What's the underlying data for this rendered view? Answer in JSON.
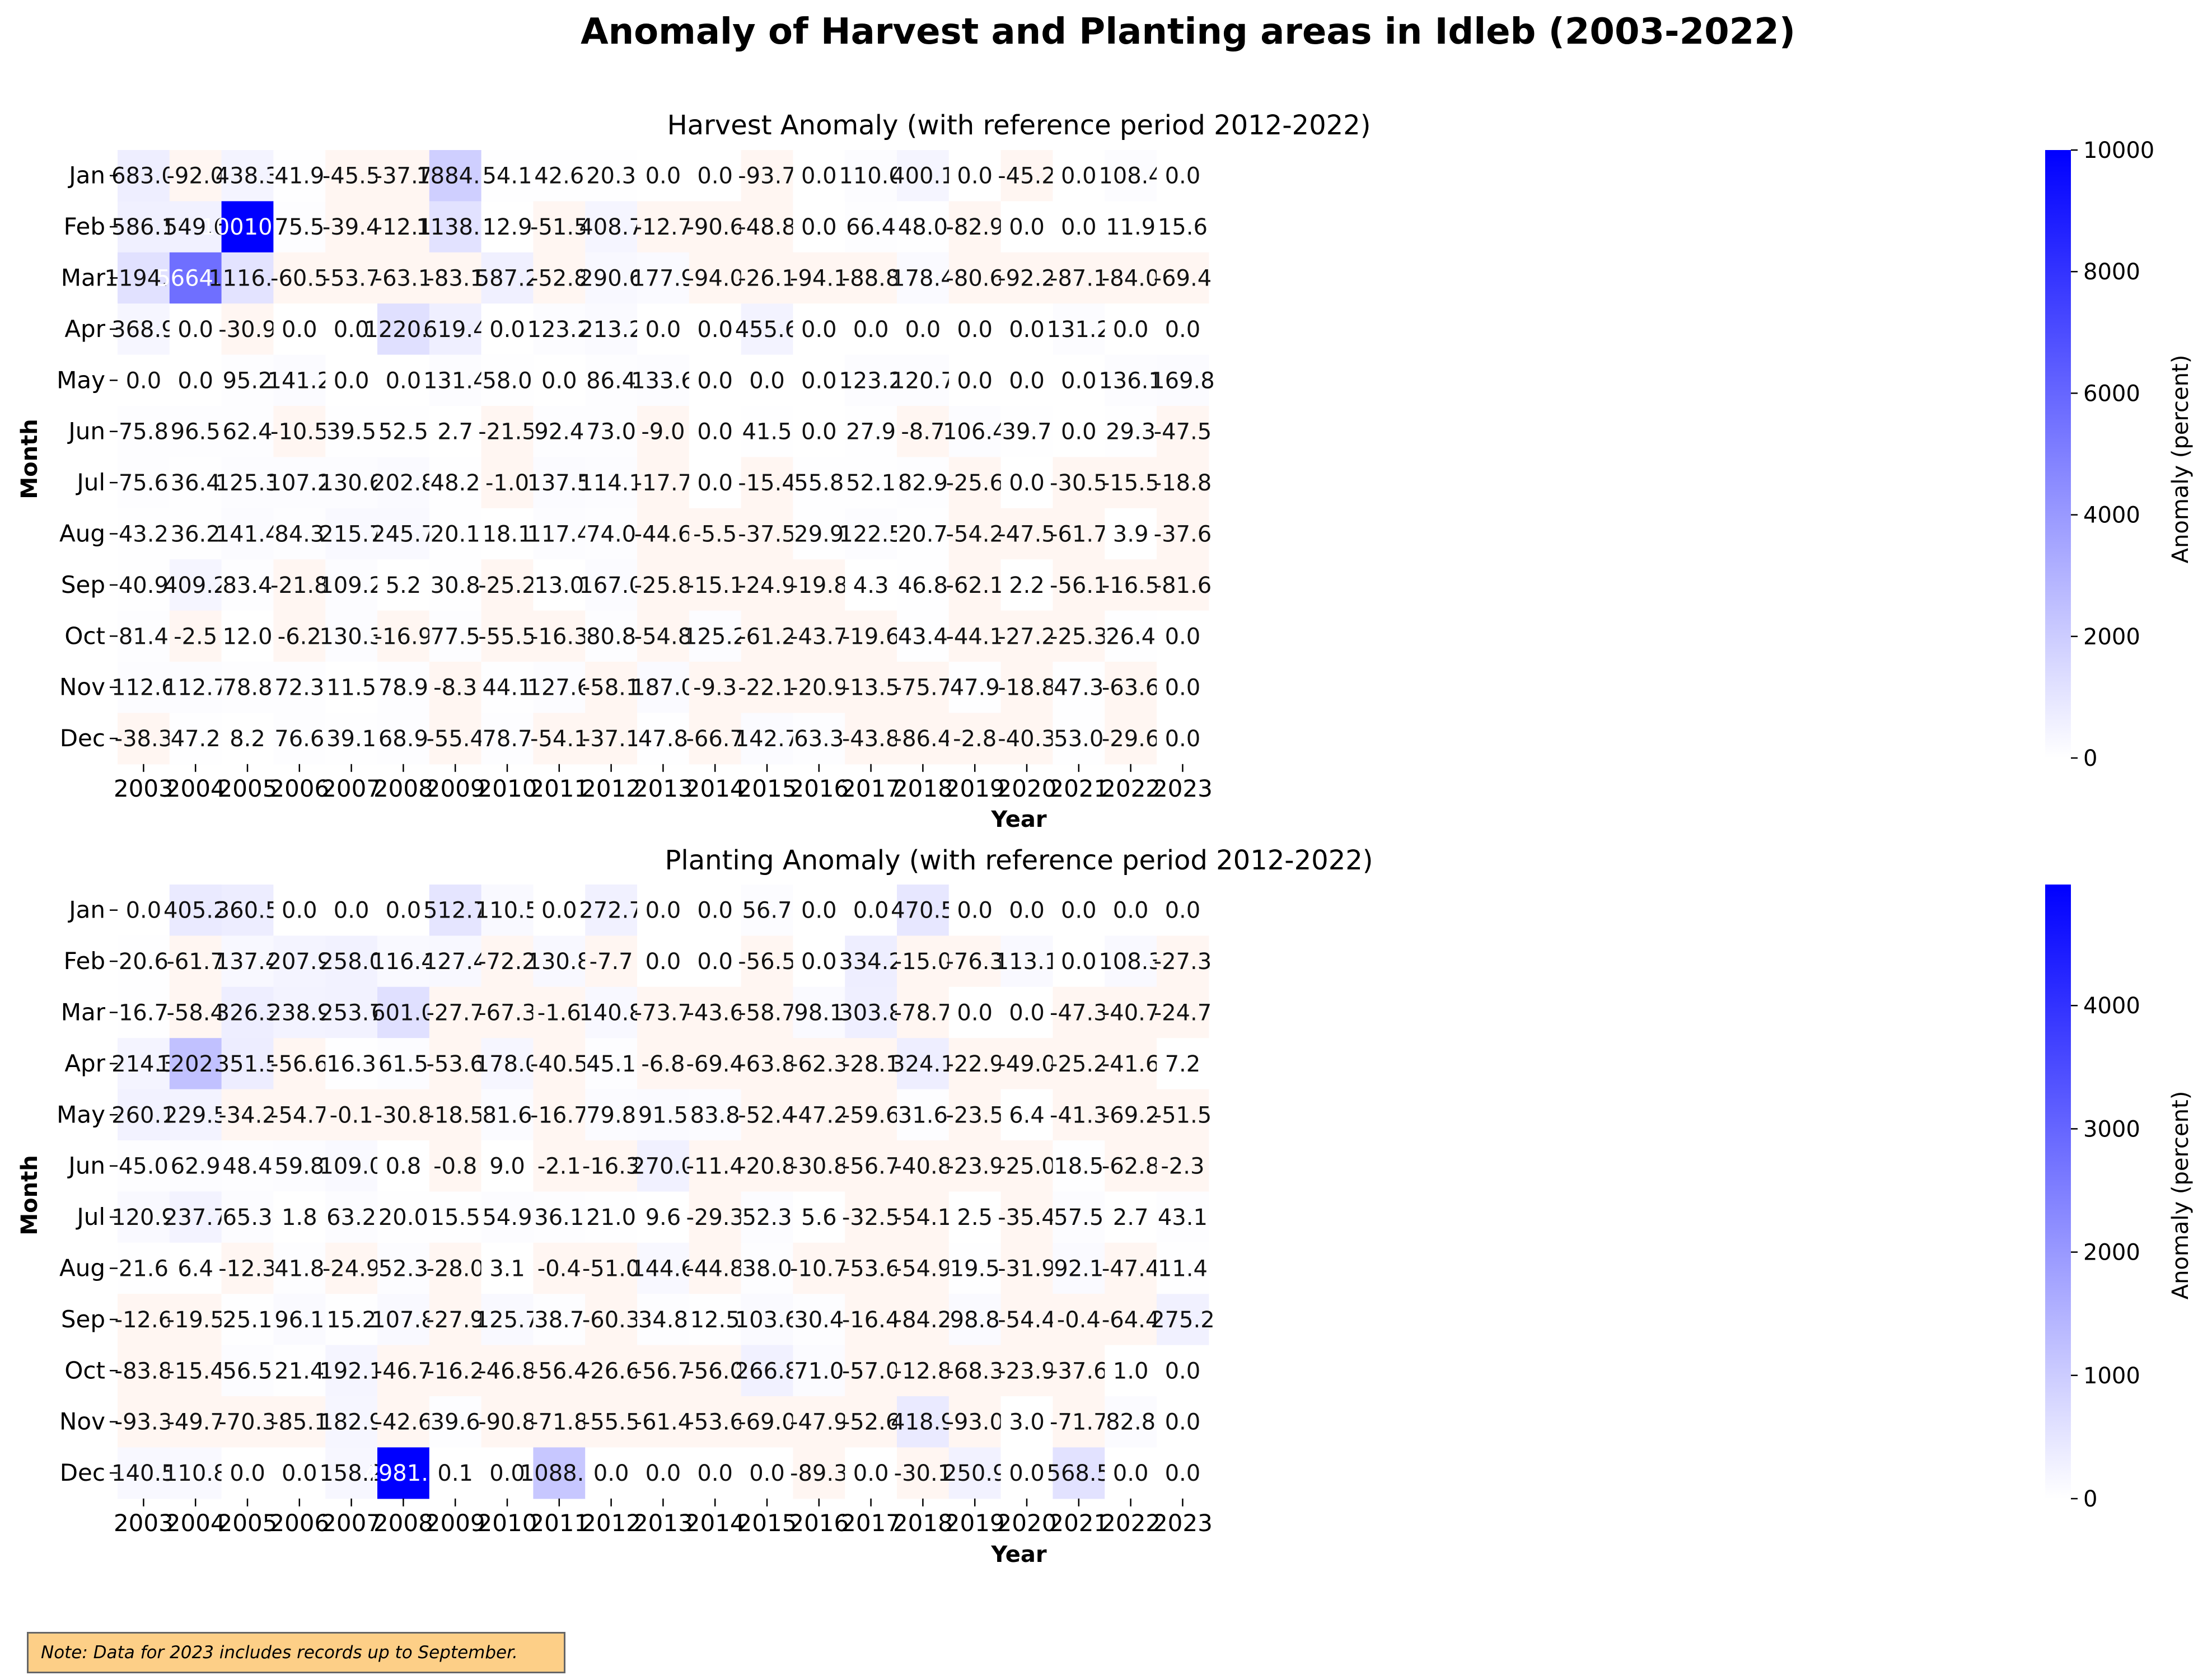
{
  "title": "Anomaly of Harvest and Planting areas in Idleb (2003-2022)",
  "note": "Note: Data for 2023 includes records up to September.",
  "colors": {
    "low": "#ffffff",
    "high": "#0000ff",
    "negative_tint": "#fff6f2"
  },
  "chart_data": [
    {
      "type": "heatmap",
      "title": "Harvest Anomaly (with reference period 2012-2022)",
      "xlabel": "Year",
      "ylabel": "Month",
      "colorbar_label": "Anomaly (percent)",
      "colorbar_range": [
        0,
        10000
      ],
      "colorbar_ticks": [
        0,
        2000,
        4000,
        6000,
        8000,
        10000
      ],
      "years": [
        "2003",
        "2004",
        "2005",
        "2006",
        "2007",
        "2008",
        "2009",
        "2010",
        "2011",
        "2012",
        "2013",
        "2014",
        "2015",
        "2016",
        "2017",
        "2018",
        "2019",
        "2020",
        "2021",
        "2022",
        "2023"
      ],
      "months": [
        "Jan",
        "Feb",
        "Mar",
        "Apr",
        "May",
        "Jun",
        "Jul",
        "Aug",
        "Sep",
        "Oct",
        "Nov",
        "Dec"
      ],
      "values": [
        [
          "683.0",
          "-92.0",
          "438.3",
          "41.9",
          "-45.5",
          "-37.7",
          "1884.0",
          "54.1",
          "42.6",
          "20.3",
          "0.0",
          "0.0",
          "-93.7",
          "0.0",
          "110.0",
          "400.1",
          "0.0",
          "-45.2",
          "0.0",
          "108.4",
          "0.0"
        ],
        [
          "586.1",
          "549.6",
          "10010.2",
          "75.5",
          "-39.4",
          "-12.1",
          "1138.0",
          "12.9",
          "-51.5",
          "408.7",
          "-12.7",
          "-90.6",
          "-48.8",
          "0.0",
          "66.4",
          "48.0",
          "-82.9",
          "0.0",
          "0.0",
          "11.9",
          "15.6"
        ],
        [
          "1194.7",
          "5664.9",
          "1116.5",
          "-60.5",
          "-53.7",
          "-63.1",
          "-83.1",
          "587.2",
          "-52.8",
          "290.6",
          "177.9",
          "-94.0",
          "-26.1",
          "-94.1",
          "-88.8",
          "178.4",
          "-80.6",
          "-92.2",
          "-87.1",
          "-84.0",
          "-69.4"
        ],
        [
          "368.9",
          "0.0",
          "-30.9",
          "0.0",
          "0.0",
          "1220.4",
          "619.4",
          "0.0",
          "123.2",
          "213.2",
          "0.0",
          "0.0",
          "455.6",
          "0.0",
          "0.0",
          "0.0",
          "0.0",
          "0.0",
          "131.2",
          "0.0",
          "0.0"
        ],
        [
          "0.0",
          "0.0",
          "95.2",
          "141.2",
          "0.0",
          "0.0",
          "131.4",
          "58.0",
          "0.0",
          "86.4",
          "133.6",
          "0.0",
          "0.0",
          "0.0",
          "123.2",
          "120.7",
          "0.0",
          "0.0",
          "0.0",
          "136.1",
          "169.8"
        ],
        [
          "75.8",
          "96.5",
          "62.4",
          "-10.5",
          "39.5",
          "52.5",
          "2.7",
          "-21.5",
          "92.4",
          "73.0",
          "-9.0",
          "0.0",
          "41.5",
          "0.0",
          "27.9",
          "-8.7",
          "106.4",
          "39.7",
          "0.0",
          "29.3",
          "-47.5"
        ],
        [
          "75.6",
          "36.4",
          "125.3",
          "107.2",
          "130.6",
          "202.8",
          "48.2",
          "-1.0",
          "137.5",
          "114.1",
          "-17.7",
          "0.0",
          "-15.4",
          "55.8",
          "52.1",
          "82.9",
          "-25.6",
          "0.0",
          "-30.5",
          "-15.5",
          "-18.8"
        ],
        [
          "43.2",
          "36.2",
          "141.4",
          "84.3",
          "215.7",
          "245.7",
          "20.1",
          "18.1",
          "117.4",
          "74.0",
          "-44.6",
          "-5.5",
          "-37.5",
          "29.9",
          "122.5",
          "20.7",
          "-54.2",
          "-47.5",
          "-61.7",
          "3.9",
          "-37.6"
        ],
        [
          "40.9",
          "409.2",
          "83.4",
          "-21.8",
          "109.2",
          "5.2",
          "30.8",
          "-25.2",
          "13.0",
          "167.0",
          "-25.8",
          "-15.1",
          "-24.9",
          "-19.8",
          "4.3",
          "46.8",
          "-62.1",
          "2.2",
          "-56.1",
          "-16.5",
          "-81.6"
        ],
        [
          "81.4",
          "-2.5",
          "12.0",
          "-6.2",
          "130.3",
          "-16.9",
          "77.5",
          "-55.5",
          "-16.3",
          "80.8",
          "-54.8",
          "125.2",
          "-61.2",
          "-43.7",
          "-19.6",
          "43.4",
          "-44.1",
          "-27.2",
          "-25.3",
          "26.4",
          "0.0"
        ],
        [
          "112.6",
          "112.7",
          "78.8",
          "72.3",
          "11.5",
          "78.9",
          "-8.3",
          "44.1",
          "127.6",
          "-58.1",
          "187.0",
          "-9.3",
          "-22.1",
          "-20.9",
          "-13.5",
          "-75.7",
          "47.9",
          "-18.8",
          "47.3",
          "-63.6",
          "0.0"
        ],
        [
          "-38.3",
          "47.2",
          "8.2",
          "76.6",
          "39.1",
          "68.9",
          "-55.4",
          "78.7",
          "-54.1",
          "-37.1",
          "47.8",
          "-66.7",
          "142.7",
          "63.3",
          "-43.8",
          "-86.4",
          "-2.8",
          "-40.3",
          "53.0",
          "-29.6",
          "0.0"
        ]
      ]
    },
    {
      "type": "heatmap",
      "title": "Planting Anomaly (with reference period 2012-2022)",
      "xlabel": "Year",
      "ylabel": "Month",
      "colorbar_label": "Anomaly (percent)",
      "colorbar_range": [
        0,
        4981.8
      ],
      "colorbar_ticks": [
        0,
        1000,
        2000,
        3000,
        4000
      ],
      "years": [
        "2003",
        "2004",
        "2005",
        "2006",
        "2007",
        "2008",
        "2009",
        "2010",
        "2011",
        "2012",
        "2013",
        "2014",
        "2015",
        "2016",
        "2017",
        "2018",
        "2019",
        "2020",
        "2021",
        "2022",
        "2023"
      ],
      "months": [
        "Jan",
        "Feb",
        "Mar",
        "Apr",
        "May",
        "Jun",
        "Jul",
        "Aug",
        "Sep",
        "Oct",
        "Nov",
        "Dec"
      ],
      "values": [
        [
          "0.0",
          "405.2",
          "360.5",
          "0.0",
          "0.0",
          "0.0",
          "512.7",
          "110.5",
          "0.0",
          "272.7",
          "0.0",
          "0.0",
          "56.7",
          "0.0",
          "0.0",
          "470.5",
          "0.0",
          "0.0",
          "0.0",
          "0.0",
          "0.0"
        ],
        [
          "20.6",
          "-61.7",
          "137.4",
          "207.9",
          "258.0",
          "116.4",
          "127.4",
          "-72.2",
          "130.8",
          "-7.7",
          "0.0",
          "0.0",
          "-56.5",
          "0.0",
          "334.2",
          "-15.0",
          "-76.3",
          "113.1",
          "0.0",
          "108.3",
          "-27.3"
        ],
        [
          "16.7",
          "-58.4",
          "326.3",
          "238.9",
          "253.7",
          "601.0",
          "-27.7",
          "-67.3",
          "-1.6",
          "140.8",
          "-73.7",
          "-43.6",
          "-58.7",
          "98.1",
          "303.8",
          "-78.7",
          "0.0",
          "0.0",
          "-47.3",
          "-40.7",
          "-24.7"
        ],
        [
          "214.3",
          "1202.3",
          "351.5",
          "-56.6",
          "16.3",
          "61.5",
          "-53.6",
          "178.0",
          "-40.5",
          "45.1",
          "-6.8",
          "-69.4",
          "-63.8",
          "-62.3",
          "-28.1",
          "324.1",
          "-22.9",
          "-49.0",
          "-25.2",
          "-41.6",
          "7.2"
        ],
        [
          "260.1",
          "229.5",
          "-34.2",
          "-54.7",
          "-0.1",
          "-30.8",
          "-18.5",
          "81.6",
          "-16.7",
          "79.8",
          "91.5",
          "83.8",
          "-52.4",
          "-47.2",
          "-59.6",
          "31.6",
          "-23.5",
          "6.4",
          "-41.3",
          "-69.2",
          "-51.5"
        ],
        [
          "45.0",
          "62.9",
          "48.4",
          "59.8",
          "109.0",
          "0.8",
          "-0.8",
          "9.0",
          "-2.1",
          "-16.3",
          "270.0",
          "-11.4",
          "-20.8",
          "-30.8",
          "-56.7",
          "-40.8",
          "-23.9",
          "-25.0",
          "18.5",
          "-62.8",
          "-2.3"
        ],
        [
          "120.9",
          "237.7",
          "65.3",
          "1.8",
          "63.2",
          "20.0",
          "15.5",
          "54.9",
          "36.1",
          "21.0",
          "9.6",
          "-29.3",
          "52.3",
          "5.6",
          "-32.5",
          "-54.1",
          "2.5",
          "-35.4",
          "57.5",
          "2.7",
          "43.1"
        ],
        [
          "21.6",
          "6.4",
          "-12.3",
          "41.8",
          "-24.9",
          "52.3",
          "-28.0",
          "3.1",
          "-0.4",
          "-51.0",
          "144.6",
          "-44.8",
          "38.0",
          "-10.7",
          "-53.6",
          "-54.9",
          "19.5",
          "-31.9",
          "92.1",
          "-47.4",
          "11.4"
        ],
        [
          "-12.6",
          "-19.5",
          "25.1",
          "96.1",
          "15.2",
          "107.8",
          "-27.9",
          "125.7",
          "38.7",
          "-60.3",
          "34.8",
          "12.5",
          "103.6",
          "30.4",
          "-16.4",
          "-84.2",
          "98.8",
          "-54.4",
          "-0.4",
          "-64.4",
          "275.2"
        ],
        [
          "-83.8",
          "-15.4",
          "56.5",
          "21.4",
          "192.1",
          "-46.7",
          "-16.2",
          "-46.8",
          "-56.4",
          "-26.6",
          "-56.7",
          "-56.0",
          "266.8",
          "71.0",
          "-57.0",
          "-12.8",
          "-68.3",
          "-23.9",
          "-37.6",
          "1.0",
          "0.0"
        ],
        [
          "-93.3",
          "-49.7",
          "-70.3",
          "-85.1",
          "182.9",
          "-42.6",
          "39.6",
          "-90.8",
          "-71.8",
          "-55.5",
          "-61.4",
          "-53.6",
          "-69.0",
          "-47.9",
          "-52.6",
          "418.9",
          "-93.0",
          "3.0",
          "-71.7",
          "82.8",
          "0.0"
        ],
        [
          "140.5",
          "110.8",
          "0.0",
          "0.0",
          "158.2",
          "4981.8",
          "0.1",
          "0.0",
          "1088.8",
          "0.0",
          "0.0",
          "0.0",
          "0.0",
          "-89.3",
          "0.0",
          "-30.1",
          "250.9",
          "0.0",
          "568.5",
          "0.0",
          "0.0"
        ]
      ]
    }
  ]
}
